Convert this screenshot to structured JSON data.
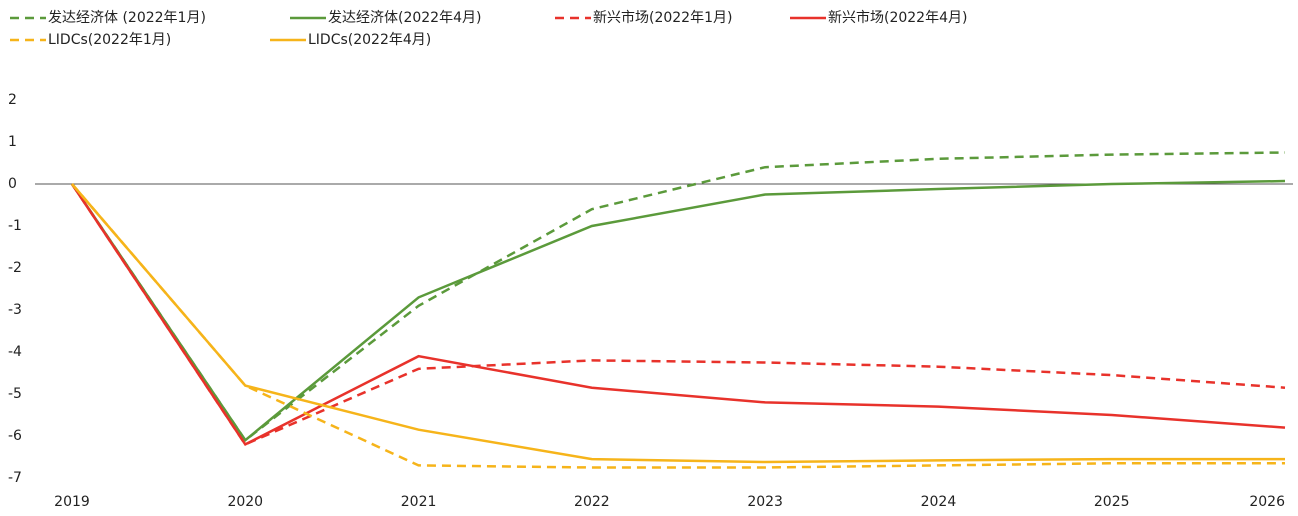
{
  "chart_data": {
    "type": "line",
    "categories": [
      "2019",
      "2020",
      "2021",
      "2022",
      "2023",
      "2024",
      "2025",
      "2026"
    ],
    "series": [
      {
        "name": "发达经济体 (2022年1月)",
        "color": "#5b9a3b",
        "dash": true,
        "values": [
          0,
          -6.1,
          -2.9,
          -0.6,
          0.4,
          0.6,
          0.7,
          0.75
        ]
      },
      {
        "name": "发达经济体(2022年4月)",
        "color": "#5b9a3b",
        "dash": false,
        "values": [
          0,
          -6.1,
          -2.7,
          -1.0,
          -0.25,
          -0.12,
          0.0,
          0.07
        ]
      },
      {
        "name": "新兴市场(2022年1月)",
        "color": "#e8322b",
        "dash": true,
        "values": [
          0,
          -6.2,
          -4.4,
          -4.2,
          -4.25,
          -4.35,
          -4.55,
          -4.85
        ]
      },
      {
        "name": "新兴市场(2022年4月)",
        "color": "#e8322b",
        "dash": false,
        "values": [
          0,
          -6.2,
          -4.1,
          -4.85,
          -5.2,
          -5.3,
          -5.5,
          -5.8
        ]
      },
      {
        "name": "LIDCs(2022年1月)",
        "color": "#f6b41a",
        "dash": true,
        "values": [
          0,
          -4.8,
          -6.7,
          -6.75,
          -6.75,
          -6.7,
          -6.65,
          -6.65
        ]
      },
      {
        "name": "LIDCs(2022年4月)",
        "color": "#f6b41a",
        "dash": false,
        "values": [
          0,
          -4.8,
          -5.85,
          -6.55,
          -6.62,
          -6.58,
          -6.55,
          -6.55
        ]
      }
    ],
    "ylim": [
      -7,
      2
    ],
    "yticks": [
      2,
      1,
      0,
      -1,
      -2,
      -3,
      -4,
      -5,
      -6,
      -7
    ]
  }
}
